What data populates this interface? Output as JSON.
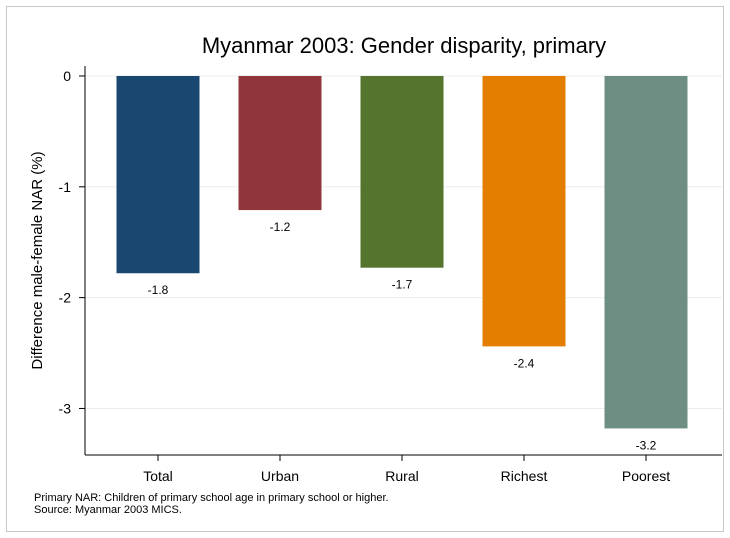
{
  "chart_data": {
    "type": "bar",
    "title": "Myanmar 2003: Gender disparity, primary",
    "xlabel": "",
    "ylabel": "Difference male-female NAR (%)",
    "categories": [
      "Total",
      "Urban",
      "Rural",
      "Richest",
      "Poorest"
    ],
    "values": [
      -1.78,
      -1.21,
      -1.73,
      -2.44,
      -3.18
    ],
    "value_labels": [
      "-1.8",
      "-1.2",
      "-1.7",
      "-2.4",
      "-3.2"
    ],
    "colors": [
      "#1a476f",
      "#90353b",
      "#55752f",
      "#e37e00",
      "#6e8e84"
    ],
    "ylim": [
      -3.42,
      0.09
    ],
    "yticks": [
      0,
      -1,
      -2,
      -3
    ],
    "ytick_labels": [
      "0",
      "-1",
      "-2",
      "-3"
    ],
    "grid": true,
    "legend": "none"
  },
  "notes": {
    "line1": "Primary NAR: Children of primary school age in primary school or higher.",
    "line2": "Source: Myanmar 2003 MICS."
  }
}
